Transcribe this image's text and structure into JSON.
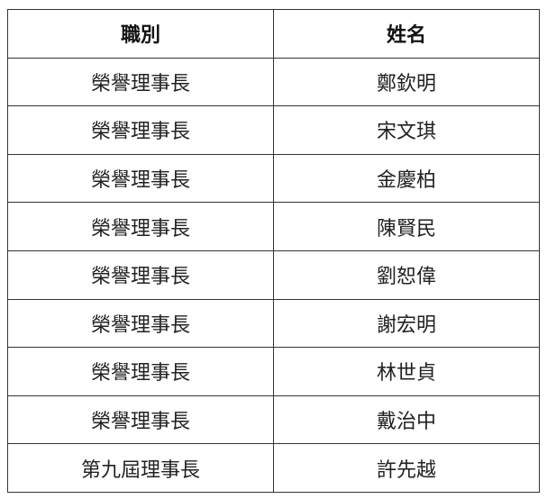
{
  "table": {
    "headers": [
      "職別",
      "姓名"
    ],
    "rows": [
      [
        "榮譽理事長",
        "鄭欽明"
      ],
      [
        "榮譽理事長",
        "宋文琪"
      ],
      [
        "榮譽理事長",
        "金慶柏"
      ],
      [
        "榮譽理事長",
        "陳賢民"
      ],
      [
        "榮譽理事長",
        "劉恕偉"
      ],
      [
        "榮譽理事長",
        "謝宏明"
      ],
      [
        "榮譽理事長",
        "林世貞"
      ],
      [
        "榮譽理事長",
        "戴治中"
      ],
      [
        "第九屆理事長",
        "許先越"
      ]
    ]
  }
}
